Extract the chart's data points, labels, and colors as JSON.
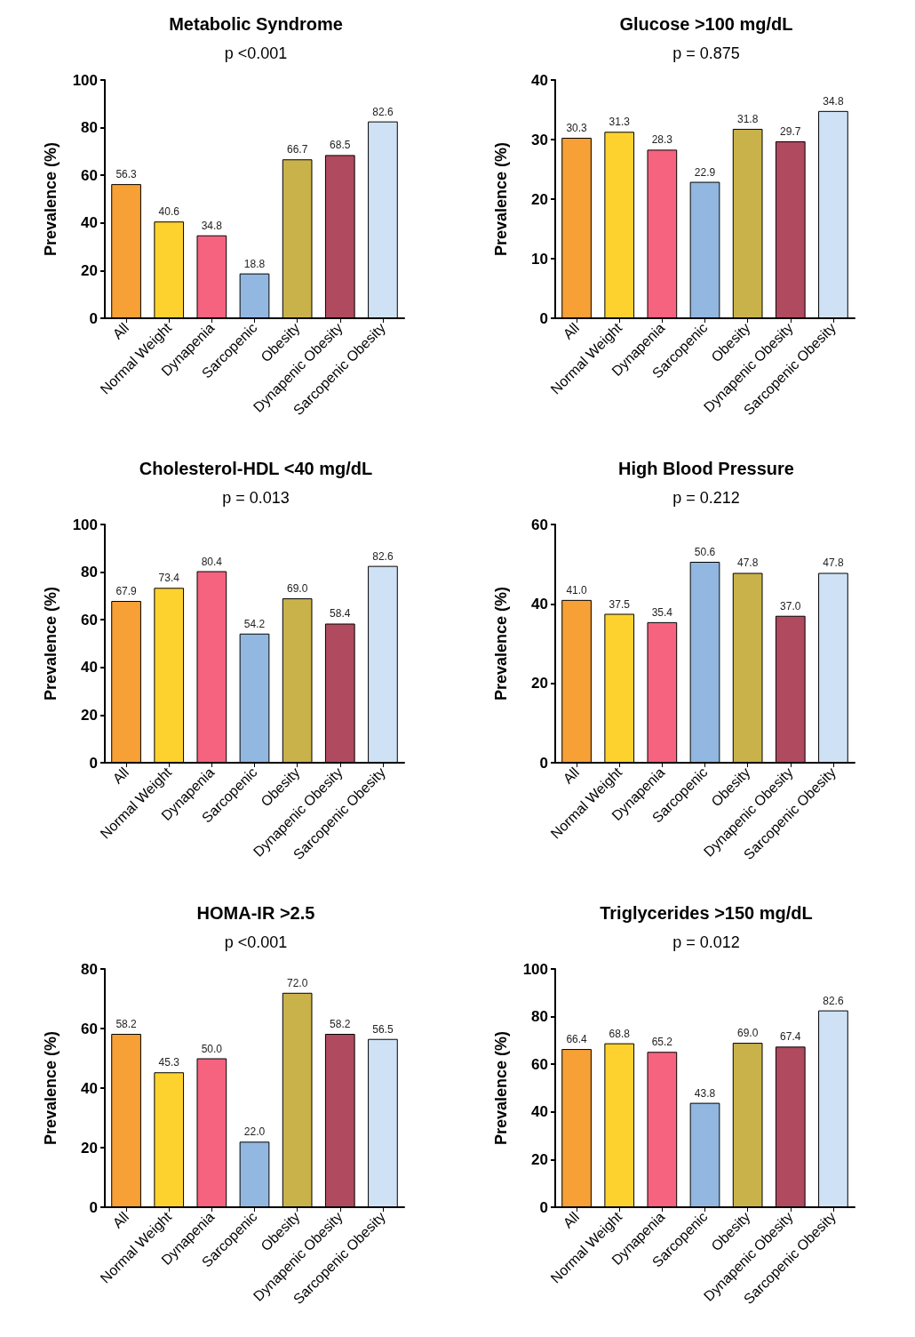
{
  "chart_data": [
    {
      "type": "bar",
      "title": "Metabolic Syndrome",
      "subtitle": "p <0.001",
      "ylabel": "Prevalence (%)",
      "categories": [
        "All",
        "Normal Weight",
        "Dynapenia",
        "Sarcopenic",
        "Obesity",
        "Dynapenic Obesity",
        "Sarcopenic Obesity"
      ],
      "values": [
        56.3,
        40.6,
        34.8,
        18.8,
        66.7,
        68.5,
        82.6
      ],
      "value_labels": [
        "56.3",
        "40.6",
        "34.8",
        "18.8",
        "66.7",
        "68.5",
        "82.6"
      ],
      "colors": [
        "#f7a035",
        "#fdd22f",
        "#f5637f",
        "#92b7e0",
        "#c9b24a",
        "#b04a5e",
        "#cfe2f5"
      ],
      "ylim": [
        0,
        100
      ],
      "yticks": [
        0,
        20,
        40,
        60,
        80,
        100
      ]
    },
    {
      "type": "bar",
      "title": "Glucose >100 mg/dL",
      "subtitle": "p = 0.875",
      "ylabel": "Prevalence (%)",
      "categories": [
        "All",
        "Normal Weight",
        "Dynapenia",
        "Sarcopenic",
        "Obesity",
        "Dynapenic Obesity",
        "Sarcopenic Obesity"
      ],
      "values": [
        30.3,
        31.3,
        28.3,
        22.9,
        31.8,
        29.7,
        34.8
      ],
      "value_labels": [
        "30.3",
        "31.3",
        "28.3",
        "22.9",
        "31.8",
        "29.7",
        "34.8"
      ],
      "colors": [
        "#f7a035",
        "#fdd22f",
        "#f5637f",
        "#92b7e0",
        "#c9b24a",
        "#b04a5e",
        "#cfe2f5"
      ],
      "ylim": [
        0,
        40
      ],
      "yticks": [
        0,
        10,
        20,
        30,
        40
      ]
    },
    {
      "type": "bar",
      "title": "Cholesterol-HDL <40 mg/dL",
      "subtitle": "p = 0.013",
      "ylabel": "Prevalence (%)",
      "categories": [
        "All",
        "Normal Weight",
        "Dynapenia",
        "Sarcopenic",
        "Obesity",
        "Dynapenic Obesity",
        "Sarcopenic Obesity"
      ],
      "values": [
        67.9,
        73.4,
        80.4,
        54.2,
        69.0,
        58.4,
        82.6
      ],
      "value_labels": [
        "67.9",
        "73.4",
        "80.4",
        "54.2",
        "69.0",
        "58.4",
        "82.6"
      ],
      "colors": [
        "#f7a035",
        "#fdd22f",
        "#f5637f",
        "#92b7e0",
        "#c9b24a",
        "#b04a5e",
        "#cfe2f5"
      ],
      "ylim": [
        0,
        100
      ],
      "yticks": [
        0,
        20,
        40,
        60,
        80,
        100
      ]
    },
    {
      "type": "bar",
      "title": "High Blood Pressure",
      "subtitle": "p = 0.212",
      "ylabel": "Prevalence (%)",
      "categories": [
        "All",
        "Normal Weight",
        "Dynapenia",
        "Sarcopenic",
        "Obesity",
        "Dynapenic Obesity",
        "Sarcopenic Obesity"
      ],
      "values": [
        41.0,
        37.5,
        35.4,
        50.6,
        47.8,
        37.0,
        47.8
      ],
      "value_labels": [
        "41.0",
        "37.5",
        "35.4",
        "50.6",
        "47.8",
        "37.0",
        "47.8"
      ],
      "colors": [
        "#f7a035",
        "#fdd22f",
        "#f5637f",
        "#92b7e0",
        "#c9b24a",
        "#b04a5e",
        "#cfe2f5"
      ],
      "ylim": [
        0,
        60
      ],
      "yticks": [
        0,
        20,
        40,
        60
      ]
    },
    {
      "type": "bar",
      "title": "HOMA-IR >2.5",
      "subtitle": "p <0.001",
      "ylabel": "Prevalence (%)",
      "categories": [
        "All",
        "Normal Weight",
        "Dynapenia",
        "Sarcopenic",
        "Obesity",
        "Dynapenic Obesity",
        "Sarcopenic Obesity"
      ],
      "values": [
        58.2,
        45.3,
        50.0,
        22.0,
        72.0,
        58.2,
        56.5
      ],
      "value_labels": [
        "58.2",
        "45.3",
        "50.0",
        "22.0",
        "72.0",
        "58.2",
        "56.5"
      ],
      "colors": [
        "#f7a035",
        "#fdd22f",
        "#f5637f",
        "#92b7e0",
        "#c9b24a",
        "#b04a5e",
        "#cfe2f5"
      ],
      "ylim": [
        0,
        80
      ],
      "yticks": [
        0,
        20,
        40,
        60,
        80
      ]
    },
    {
      "type": "bar",
      "title": "Triglycerides >150 mg/dL",
      "subtitle": "p = 0.012",
      "ylabel": "Prevalence (%)",
      "categories": [
        "All",
        "Normal Weight",
        "Dynapenia",
        "Sarcopenic",
        "Obesity",
        "Dynapenic Obesity",
        "Sarcopenic Obesity"
      ],
      "values": [
        66.4,
        68.8,
        65.2,
        43.8,
        69.0,
        67.4,
        82.6
      ],
      "value_labels": [
        "66.4",
        "68.8",
        "65.2",
        "43.8",
        "69.0",
        "67.4",
        "82.6"
      ],
      "colors": [
        "#f7a035",
        "#fdd22f",
        "#f5637f",
        "#92b7e0",
        "#c9b24a",
        "#b04a5e",
        "#cfe2f5"
      ],
      "ylim": [
        0,
        100
      ],
      "yticks": [
        0,
        20,
        40,
        60,
        80,
        100
      ]
    }
  ]
}
